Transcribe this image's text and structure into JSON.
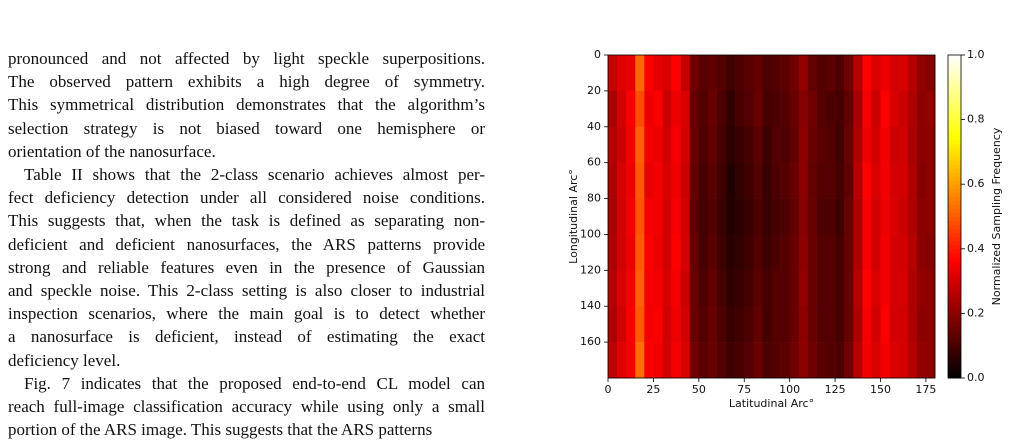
{
  "text": {
    "paragraphs": [
      [
        "pronounced and not affected by light speckle superpositions.",
        "The observed pattern exhibits a high degree of symmetry.",
        "This symmetrical distribution demonstrates that the algorithm’s",
        "selection strategy is not biased toward one hemisphere or",
        "orientation of the nanosurface."
      ],
      [
        "Table II shows that the 2-class scenario achieves almost per-",
        "fect deficiency detection under all considered noise conditions.",
        "This suggests that, when the task is defined as separating non-",
        "deficient and deficient nanosurfaces, the ARS patterns provide",
        "strong and reliable features even in the presence of Gaussian",
        "and speckle noise. This 2-class setting is also closer to industrial",
        "inspection scenarios, where the main goal is to detect whether",
        "a nanosurface is deficient, instead of estimating the exact",
        "deficiency level."
      ],
      [
        "Fig. 7 indicates that the proposed end-to-end CL model can",
        "reach full-image classification accuracy while using only a small",
        "portion of the ARS image. This suggests that the ARS patterns"
      ]
    ]
  },
  "chart_data": {
    "type": "heatmap",
    "xlabel": "Latitudinal Arc°",
    "ylabel": "Longitudinal Arc°",
    "colorbar_label": "Normalized Sampling Frequency",
    "colormap": "hot",
    "xlim": [
      0,
      180
    ],
    "ylim": [
      180,
      0
    ],
    "clim": [
      0,
      1
    ],
    "xticks": [
      0,
      25,
      50,
      75,
      100,
      125,
      150,
      175
    ],
    "yticks": [
      0,
      20,
      40,
      60,
      80,
      100,
      120,
      140,
      160
    ],
    "cticks": [
      {
        "value": 0,
        "label": "0.0"
      },
      0.2,
      0.4,
      0.6,
      0.8,
      {
        "value": 1,
        "label": "1.0"
      }
    ],
    "xbins": [
      0,
      5,
      10,
      15,
      20,
      25,
      30,
      35,
      40,
      45,
      50,
      55,
      60,
      65,
      70,
      75,
      80,
      85,
      90,
      95,
      100,
      105,
      110,
      115,
      120,
      125,
      130,
      135,
      140,
      145,
      150,
      155,
      160,
      165,
      170,
      175,
      180
    ],
    "ybins": [
      0,
      20,
      40,
      60,
      80,
      100,
      120,
      140,
      160,
      180
    ],
    "values": [
      [
        0.28,
        0.32,
        0.33,
        0.52,
        0.36,
        0.33,
        0.31,
        0.36,
        0.28,
        0.16,
        0.13,
        0.14,
        0.12,
        0.09,
        0.11,
        0.13,
        0.14,
        0.11,
        0.12,
        0.13,
        0.16,
        0.21,
        0.14,
        0.12,
        0.13,
        0.11,
        0.16,
        0.26,
        0.36,
        0.31,
        0.34,
        0.3,
        0.31,
        0.26,
        0.21,
        0.19
      ],
      [
        0.24,
        0.3,
        0.36,
        0.48,
        0.34,
        0.36,
        0.29,
        0.34,
        0.31,
        0.14,
        0.12,
        0.15,
        0.11,
        0.07,
        0.1,
        0.12,
        0.15,
        0.1,
        0.11,
        0.12,
        0.15,
        0.19,
        0.16,
        0.12,
        0.11,
        0.1,
        0.14,
        0.24,
        0.35,
        0.29,
        0.36,
        0.31,
        0.29,
        0.25,
        0.2,
        0.21
      ],
      [
        0.26,
        0.29,
        0.35,
        0.51,
        0.35,
        0.34,
        0.3,
        0.35,
        0.3,
        0.15,
        0.11,
        0.14,
        0.1,
        0.06,
        0.08,
        0.1,
        0.13,
        0.09,
        0.12,
        0.11,
        0.14,
        0.2,
        0.15,
        0.13,
        0.12,
        0.09,
        0.15,
        0.25,
        0.34,
        0.3,
        0.35,
        0.29,
        0.3,
        0.24,
        0.2,
        0.2
      ],
      [
        0.25,
        0.31,
        0.34,
        0.5,
        0.33,
        0.35,
        0.31,
        0.34,
        0.29,
        0.14,
        0.1,
        0.13,
        0.09,
        0.05,
        0.07,
        0.09,
        0.12,
        0.08,
        0.11,
        0.12,
        0.15,
        0.2,
        0.14,
        0.12,
        0.12,
        0.1,
        0.14,
        0.26,
        0.36,
        0.31,
        0.35,
        0.3,
        0.3,
        0.25,
        0.19,
        0.2
      ],
      [
        0.24,
        0.3,
        0.35,
        0.49,
        0.35,
        0.35,
        0.3,
        0.35,
        0.3,
        0.13,
        0.1,
        0.12,
        0.08,
        0.05,
        0.06,
        0.08,
        0.11,
        0.08,
        0.1,
        0.11,
        0.14,
        0.19,
        0.15,
        0.11,
        0.11,
        0.09,
        0.15,
        0.25,
        0.35,
        0.3,
        0.34,
        0.31,
        0.29,
        0.25,
        0.2,
        0.2
      ],
      [
        0.25,
        0.3,
        0.34,
        0.5,
        0.36,
        0.34,
        0.3,
        0.36,
        0.3,
        0.14,
        0.1,
        0.13,
        0.09,
        0.06,
        0.07,
        0.09,
        0.12,
        0.09,
        0.11,
        0.12,
        0.15,
        0.2,
        0.15,
        0.12,
        0.12,
        0.1,
        0.15,
        0.25,
        0.35,
        0.3,
        0.35,
        0.3,
        0.3,
        0.26,
        0.2,
        0.19
      ],
      [
        0.26,
        0.31,
        0.35,
        0.51,
        0.35,
        0.35,
        0.31,
        0.35,
        0.29,
        0.15,
        0.11,
        0.14,
        0.1,
        0.07,
        0.08,
        0.1,
        0.13,
        0.1,
        0.12,
        0.12,
        0.15,
        0.21,
        0.15,
        0.12,
        0.12,
        0.1,
        0.15,
        0.26,
        0.36,
        0.31,
        0.35,
        0.3,
        0.31,
        0.25,
        0.21,
        0.2
      ],
      [
        0.25,
        0.3,
        0.36,
        0.5,
        0.35,
        0.36,
        0.3,
        0.34,
        0.3,
        0.15,
        0.12,
        0.15,
        0.11,
        0.08,
        0.09,
        0.11,
        0.14,
        0.1,
        0.12,
        0.12,
        0.15,
        0.2,
        0.15,
        0.12,
        0.12,
        0.1,
        0.15,
        0.25,
        0.35,
        0.3,
        0.36,
        0.3,
        0.3,
        0.25,
        0.2,
        0.2
      ],
      [
        0.27,
        0.32,
        0.35,
        0.53,
        0.36,
        0.35,
        0.3,
        0.35,
        0.31,
        0.16,
        0.13,
        0.15,
        0.12,
        0.09,
        0.1,
        0.12,
        0.15,
        0.11,
        0.12,
        0.13,
        0.16,
        0.2,
        0.16,
        0.13,
        0.12,
        0.11,
        0.16,
        0.26,
        0.35,
        0.31,
        0.35,
        0.31,
        0.3,
        0.26,
        0.21,
        0.2
      ]
    ]
  }
}
